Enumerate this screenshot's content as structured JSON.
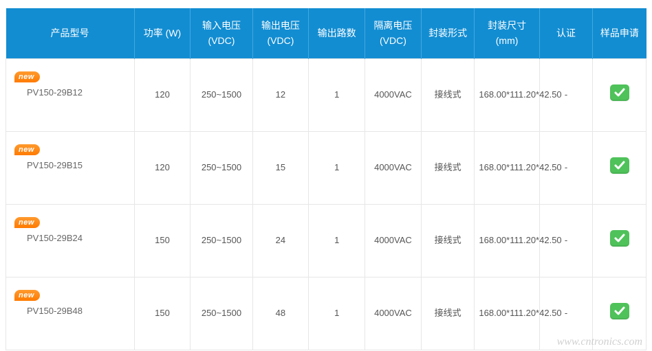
{
  "table": {
    "header_bg": "#128dd2",
    "header_text": "#ffffff",
    "border_color": "#e6e6e6",
    "cell_text_color": "#555555",
    "new_badge_text": "new",
    "new_badge_bg": "#ff7a00",
    "check_bg": "#4fc25a",
    "columns": [
      "产品型号",
      "功率 (W)",
      "输入电压(VDC)",
      "输出电压(VDC)",
      "输出路数",
      "隔离电压(VDC)",
      "封装形式",
      "封装尺寸(mm)",
      "认证",
      "样品申请"
    ],
    "rows": [
      {
        "is_new": true,
        "model": "PV150-29B12",
        "power": "120",
        "vin": "250~1500",
        "vout": "12",
        "outputs": "1",
        "isolation": "4000VAC",
        "package": "接线式",
        "dimensions": "168.00*111.20*42.50",
        "cert": "-",
        "sample": true
      },
      {
        "is_new": true,
        "model": "PV150-29B15",
        "power": "120",
        "vin": "250~1500",
        "vout": "15",
        "outputs": "1",
        "isolation": "4000VAC",
        "package": "接线式",
        "dimensions": "168.00*111.20*42.50",
        "cert": "-",
        "sample": true
      },
      {
        "is_new": true,
        "model": "PV150-29B24",
        "power": "150",
        "vin": "250~1500",
        "vout": "24",
        "outputs": "1",
        "isolation": "4000VAC",
        "package": "接线式",
        "dimensions": "168.00*111.20*42.50",
        "cert": "-",
        "sample": true
      },
      {
        "is_new": true,
        "model": "PV150-29B48",
        "power": "150",
        "vin": "250~1500",
        "vout": "48",
        "outputs": "1",
        "isolation": "4000VAC",
        "package": "接线式",
        "dimensions": "168.00*111.20*42.50",
        "cert": "-",
        "sample": true
      }
    ]
  },
  "watermark": "www.cntronics.com"
}
